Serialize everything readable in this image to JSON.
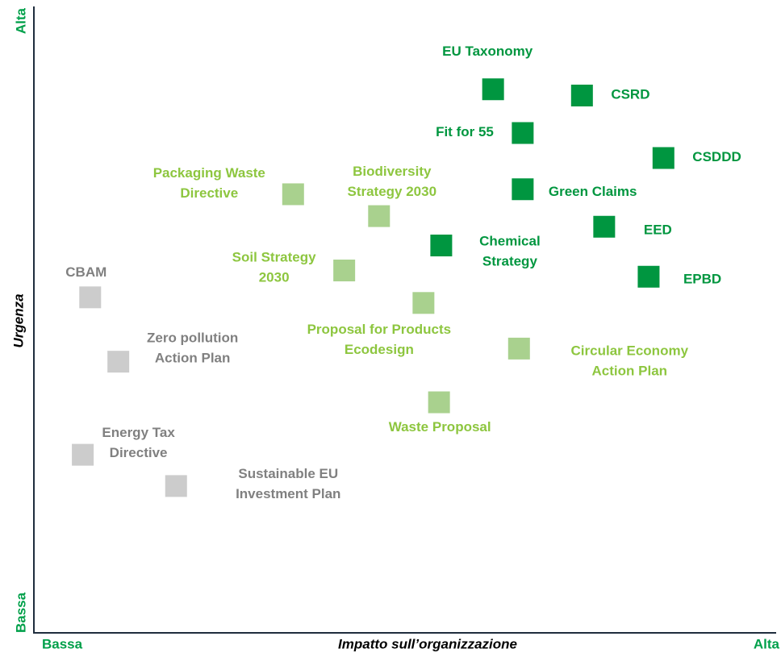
{
  "chart_data": {
    "type": "scatter",
    "xlabel": "Impatto sull’organizzazione",
    "ylabel": "Urgenza",
    "xlim": [
      0,
      100
    ],
    "ylim": [
      0,
      100
    ],
    "xticks": [
      {
        "value": 0,
        "label": "Bassa"
      },
      {
        "value": 100,
        "label": "Alta"
      }
    ],
    "yticks": [
      {
        "value": 0,
        "label": "Bassa"
      },
      {
        "value": 100,
        "label": "Alta"
      }
    ],
    "tick_color": "#00a04a",
    "series": [
      {
        "color": "#009640",
        "label_color": "#00963f",
        "labels": [
          [
            "EU Taxonomy"
          ],
          [
            "CSRD"
          ],
          [
            "Fit for 55"
          ],
          [
            "CSDDD"
          ],
          [
            "Green Claims"
          ],
          [
            "EED"
          ],
          [
            "Chemical",
            "Strategy"
          ],
          [
            "EPBD"
          ]
        ],
        "x": [
          62,
          74,
          66,
          85,
          66,
          77,
          55,
          83
        ],
        "y": [
          87,
          86,
          80,
          76,
          71,
          65,
          62,
          57
        ]
      },
      {
        "color": "#a9d18e",
        "label_color": "#8dc63f",
        "labels": [
          [
            "Packaging Waste",
            "Directive"
          ],
          [
            "Biodiversity",
            "Strategy 2030"
          ],
          [
            "Soil Strategy",
            "2030"
          ],
          [
            "Proposal for Products",
            "Ecodesign"
          ],
          [
            "Circular Economy",
            "Action Plan"
          ],
          [
            "Waste Proposal"
          ]
        ],
        "x": [
          35,
          46.6,
          41.9,
          52.6,
          65.5,
          54.7
        ],
        "y": [
          70.2,
          66.7,
          58,
          52.8,
          45.5,
          36.9
        ]
      },
      {
        "color": "#cccccc",
        "label_color": "#808080",
        "labels": [
          [
            "CBAM"
          ],
          [
            "Zero pollution",
            "Action Plan"
          ],
          [
            "Energy Tax",
            "Directive"
          ],
          [
            "Sustainable EU",
            "Investment Plan"
          ]
        ],
        "x": [
          7.6,
          11.4,
          6.6,
          19.2
        ],
        "y": [
          53.7,
          43.4,
          28.5,
          23.5
        ]
      }
    ]
  }
}
